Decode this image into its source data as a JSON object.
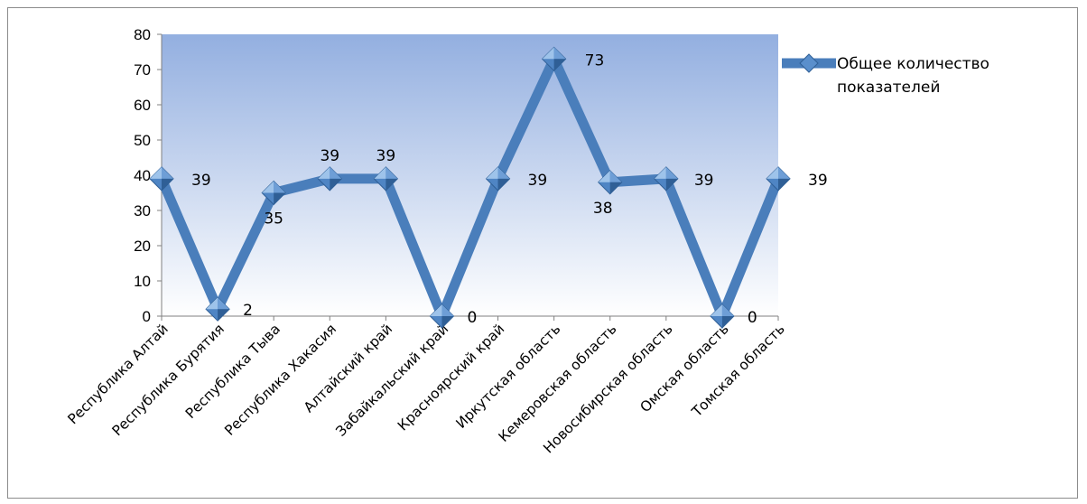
{
  "chart_data": {
    "type": "line",
    "categories": [
      "Республика Алтай",
      "Республика Бурятия",
      "Республика Тыва",
      "Республика Хакасия",
      "Алтайский край",
      "Забайкальский край",
      "Красноярский край",
      "Иркутская область",
      "Кемеровская область",
      "Новосибирская область",
      "Омская область",
      "Томская область"
    ],
    "series": [
      {
        "name": "Общее количество показателей",
        "values": [
          39,
          2,
          35,
          39,
          39,
          0,
          39,
          73,
          38,
          39,
          0,
          39
        ],
        "data_labels": [
          "39",
          "2",
          "35",
          "39",
          "39",
          "0",
          "39",
          "73",
          "38",
          "39",
          "0",
          "39"
        ]
      }
    ],
    "ylim": [
      0,
      80
    ],
    "yticks": [
      "0",
      "10",
      "20",
      "30",
      "40",
      "50",
      "60",
      "70",
      "80"
    ],
    "grid": false,
    "legend_position": "right",
    "legend_lines": [
      "Общее количество",
      "показателей"
    ],
    "colors": {
      "line": "#4a7ebb",
      "marker_light": "#9ec3ea",
      "marker_dark": "#2f5f96",
      "plot_top": "#93afe0",
      "plot_bottom": "#ffffff",
      "axis": "#808080"
    }
  }
}
